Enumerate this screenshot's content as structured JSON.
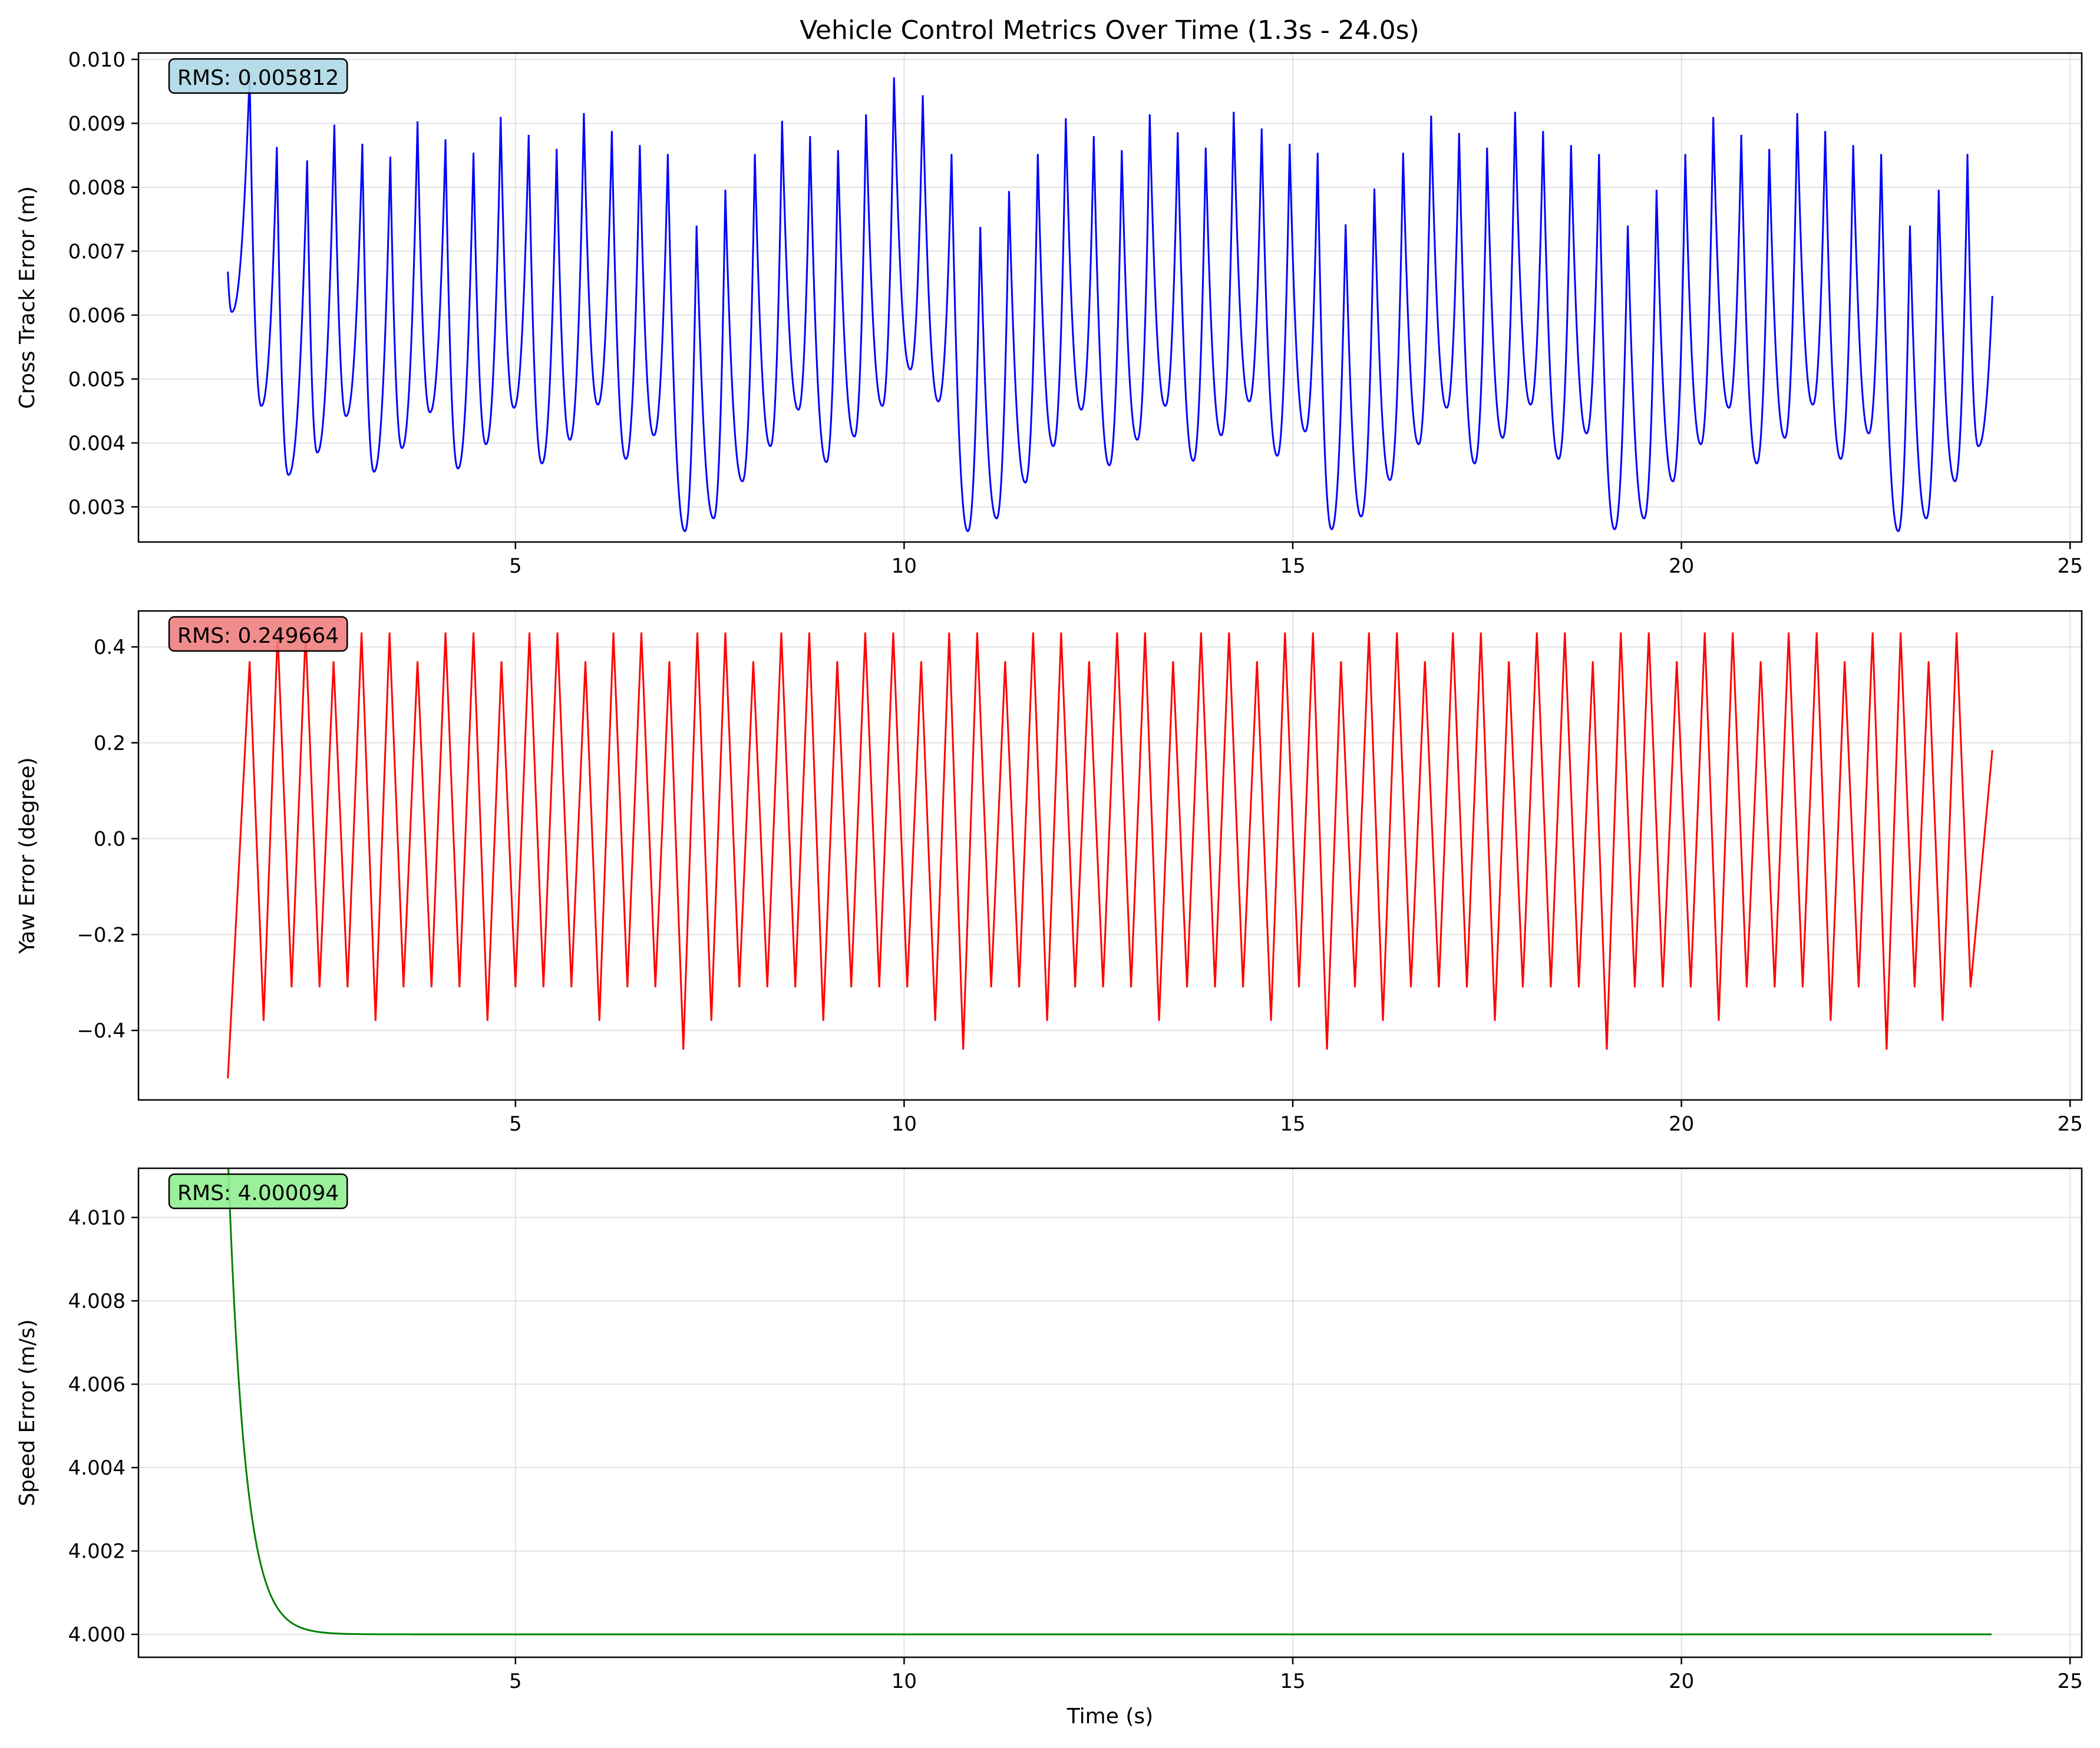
{
  "figure": {
    "title": "Vehicle Control Metrics Over Time (1.3s - 24.0s)"
  },
  "chart_data": [
    {
      "type": "line",
      "name": "cross-track",
      "ylabel": "Cross Track Error (m)",
      "xlabel": "",
      "color": "#0000ff",
      "xlim": [
        0.15,
        25.15
      ],
      "ylim": [
        0.00245,
        0.0101
      ],
      "xticks": [
        5,
        10,
        15,
        20,
        25
      ],
      "yticks": [
        0.003,
        0.004,
        0.005,
        0.006,
        0.007,
        0.008,
        0.009,
        0.01
      ],
      "ytick_labels": [
        "0.003",
        "0.004",
        "0.005",
        "0.006",
        "0.007",
        "0.008",
        "0.009",
        "0.010"
      ],
      "xtick_labels": [
        "5",
        "10",
        "15",
        "20",
        "25"
      ],
      "grid": true,
      "rms_label": "RMS: 0.005812",
      "rms_color": "#add8e6",
      "start": [
        1.3,
        0.00668
      ],
      "dip_after_start": [
        1.35,
        0.00605
      ],
      "peaks": [
        [
          1.58,
          0.0098
        ],
        [
          1.93,
          0.00863
        ],
        [
          2.32,
          0.00842
        ],
        [
          2.67,
          0.00898
        ],
        [
          3.03,
          0.00868
        ],
        [
          3.39,
          0.00848
        ],
        [
          3.74,
          0.00903
        ],
        [
          4.1,
          0.00875
        ],
        [
          4.46,
          0.00854
        ],
        [
          4.81,
          0.0091
        ],
        [
          5.17,
          0.00882
        ],
        [
          5.53,
          0.0086
        ],
        [
          5.88,
          0.00916
        ],
        [
          6.24,
          0.00888
        ],
        [
          6.6,
          0.00866
        ],
        [
          6.96,
          0.00852
        ],
        [
          7.33,
          0.0074
        ],
        [
          7.7,
          0.00796
        ],
        [
          8.08,
          0.00852
        ],
        [
          8.43,
          0.00904
        ],
        [
          8.79,
          0.0088
        ],
        [
          9.15,
          0.00858
        ],
        [
          9.51,
          0.00914
        ],
        [
          9.87,
          0.00972
        ],
        [
          10.24,
          0.00944
        ],
        [
          10.61,
          0.00852
        ],
        [
          10.98,
          0.00738
        ],
        [
          11.35,
          0.00794
        ],
        [
          11.72,
          0.00852
        ],
        [
          12.08,
          0.00908
        ],
        [
          12.44,
          0.0088
        ],
        [
          12.8,
          0.00858
        ],
        [
          13.16,
          0.00914
        ],
        [
          13.52,
          0.00886
        ],
        [
          13.88,
          0.00862
        ],
        [
          14.24,
          0.00918
        ],
        [
          14.6,
          0.00892
        ],
        [
          14.96,
          0.00868
        ],
        [
          15.32,
          0.00854
        ],
        [
          15.68,
          0.00742
        ],
        [
          16.05,
          0.00798
        ],
        [
          16.42,
          0.00854
        ],
        [
          16.78,
          0.00912
        ],
        [
          17.14,
          0.00885
        ],
        [
          17.5,
          0.00862
        ],
        [
          17.86,
          0.00918
        ],
        [
          18.22,
          0.00888
        ],
        [
          18.58,
          0.00866
        ],
        [
          18.94,
          0.00852
        ],
        [
          19.31,
          0.0074
        ],
        [
          19.68,
          0.00796
        ],
        [
          20.05,
          0.00852
        ],
        [
          20.41,
          0.0091
        ],
        [
          20.77,
          0.00882
        ],
        [
          21.13,
          0.0086
        ],
        [
          21.49,
          0.00916
        ],
        [
          21.85,
          0.00888
        ],
        [
          22.21,
          0.00866
        ],
        [
          22.57,
          0.00852
        ],
        [
          22.94,
          0.0074
        ],
        [
          23.31,
          0.00796
        ],
        [
          23.68,
          0.00852
        ]
      ],
      "troughs": [
        [
          1.73,
          0.00458
        ],
        [
          2.08,
          0.0035
        ],
        [
          2.45,
          0.00385
        ],
        [
          2.82,
          0.00442
        ],
        [
          3.18,
          0.00355
        ],
        [
          3.54,
          0.00392
        ],
        [
          3.9,
          0.00448
        ],
        [
          4.26,
          0.0036
        ],
        [
          4.62,
          0.00398
        ],
        [
          4.98,
          0.00455
        ],
        [
          5.34,
          0.00368
        ],
        [
          5.7,
          0.00405
        ],
        [
          6.06,
          0.0046
        ],
        [
          6.42,
          0.00375
        ],
        [
          6.78,
          0.00412
        ],
        [
          7.18,
          0.00262
        ],
        [
          7.55,
          0.00282
        ],
        [
          7.92,
          0.0034
        ],
        [
          8.28,
          0.00395
        ],
        [
          8.64,
          0.00452
        ],
        [
          9.0,
          0.0037
        ],
        [
          9.36,
          0.0041
        ],
        [
          9.72,
          0.00458
        ],
        [
          10.08,
          0.00515
        ],
        [
          10.44,
          0.00465
        ],
        [
          10.82,
          0.00262
        ],
        [
          11.19,
          0.00282
        ],
        [
          11.56,
          0.00338
        ],
        [
          11.92,
          0.00395
        ],
        [
          12.28,
          0.00452
        ],
        [
          12.64,
          0.00365
        ],
        [
          13.0,
          0.00405
        ],
        [
          13.36,
          0.00458
        ],
        [
          13.72,
          0.00372
        ],
        [
          14.08,
          0.00412
        ],
        [
          14.44,
          0.00465
        ],
        [
          14.8,
          0.0038
        ],
        [
          15.16,
          0.00418
        ],
        [
          15.5,
          0.00265
        ],
        [
          15.88,
          0.00285
        ],
        [
          16.25,
          0.00342
        ],
        [
          16.62,
          0.00398
        ],
        [
          16.98,
          0.00455
        ],
        [
          17.34,
          0.00368
        ],
        [
          17.7,
          0.00408
        ],
        [
          18.06,
          0.0046
        ],
        [
          18.42,
          0.00375
        ],
        [
          18.78,
          0.00415
        ],
        [
          19.14,
          0.00265
        ],
        [
          19.52,
          0.00282
        ],
        [
          19.89,
          0.0034
        ],
        [
          20.25,
          0.00398
        ],
        [
          20.61,
          0.00455
        ],
        [
          20.97,
          0.00368
        ],
        [
          21.33,
          0.00408
        ],
        [
          21.69,
          0.0046
        ],
        [
          22.05,
          0.00375
        ],
        [
          22.41,
          0.00415
        ],
        [
          22.79,
          0.00262
        ],
        [
          23.15,
          0.00282
        ],
        [
          23.52,
          0.0034
        ],
        [
          23.82,
          0.00395
        ]
      ],
      "end": [
        24.0,
        0.0063
      ]
    },
    {
      "type": "line",
      "name": "yaw",
      "ylabel": "Yaw Error (degree)",
      "xlabel": "",
      "color": "#ff0000",
      "xlim": [
        0.15,
        25.15
      ],
      "ylim": [
        -0.545,
        0.475
      ],
      "xticks": [
        5,
        10,
        15,
        20,
        25
      ],
      "yticks": [
        -0.4,
        -0.2,
        0.0,
        0.2,
        0.4
      ],
      "ytick_labels": [
        "−0.4",
        "−0.2",
        "0.0",
        "0.2",
        "0.4"
      ],
      "xtick_labels": [
        "5",
        "10",
        "15",
        "20",
        "25"
      ],
      "grid": true,
      "rms_label": "RMS: 0.249664",
      "rms_color": "#f08080",
      "start": [
        1.3,
        -0.5
      ],
      "period": 0.36,
      "first_peak": 1.58,
      "peak_high": 0.43,
      "peak_mid": 0.37,
      "trough_shallow": -0.31,
      "trough_deep": -0.38,
      "trough_deepest": -0.44,
      "end": [
        24.0,
        0.185
      ]
    },
    {
      "type": "line",
      "name": "speed",
      "ylabel": "Speed Error (m/s)",
      "xlabel": "Time (s)",
      "color": "#008000",
      "xlim": [
        0.15,
        25.15
      ],
      "ylim": [
        3.99945,
        4.01118
      ],
      "xticks": [
        5,
        10,
        15,
        20,
        25
      ],
      "yticks": [
        4.0,
        4.002,
        4.004,
        4.006,
        4.008,
        4.01
      ],
      "ytick_labels": [
        "4.000",
        "4.002",
        "4.004",
        "4.006",
        "4.008",
        "4.010"
      ],
      "xtick_labels": [
        "5",
        "10",
        "15",
        "20",
        "25"
      ],
      "grid": true,
      "rms_label": "RMS: 4.000094",
      "rms_color": "#90ee90",
      "start": [
        1.3,
        4.0115
      ],
      "asymptote": 4.0,
      "decay_tau": 0.22,
      "end": [
        24.0,
        4.0
      ]
    }
  ]
}
